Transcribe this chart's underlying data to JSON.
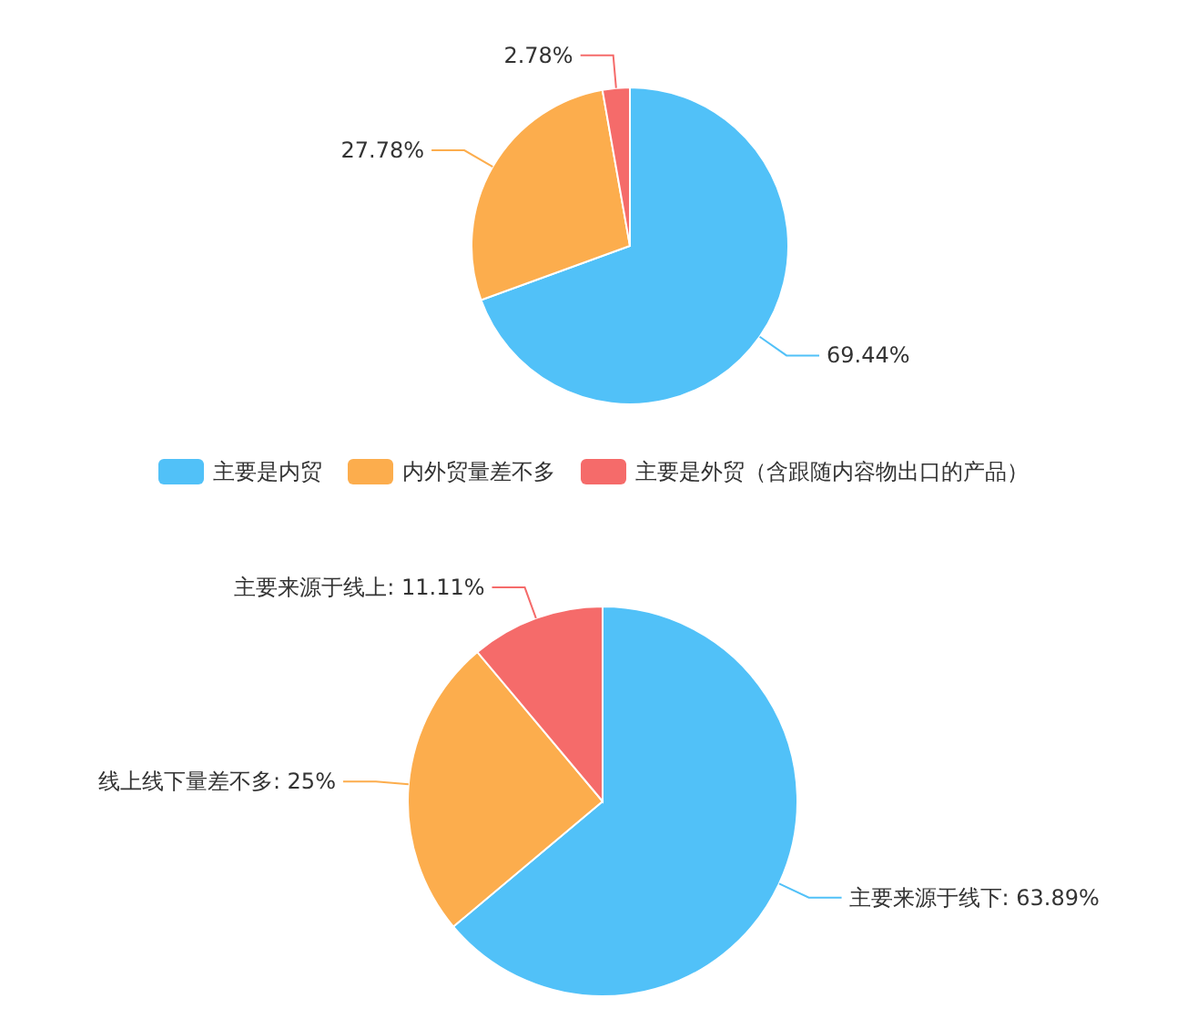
{
  "chart_data": [
    {
      "type": "pie",
      "categories": [
        "主要是内贸",
        "内外贸量差不多",
        "主要是外贸（含跟随内容物出口的产品）"
      ],
      "values": [
        69.44,
        27.78,
        2.78
      ],
      "value_labels": [
        "69.44%",
        "27.78%",
        "2.78%"
      ],
      "colors": [
        "#51c1f8",
        "#fcad4d",
        "#f56b6a"
      ],
      "legend": "bottom"
    },
    {
      "type": "pie",
      "categories": [
        "主要来源于线下",
        "线上线下量差不多",
        "主要来源于线上"
      ],
      "values": [
        63.89,
        25,
        11.11
      ],
      "value_labels": [
        ": 63.89%",
        ": 25%",
        ": 11.11%"
      ],
      "colors": [
        "#51c1f8",
        "#fcad4d",
        "#f56b6a"
      ],
      "legend": false
    }
  ]
}
